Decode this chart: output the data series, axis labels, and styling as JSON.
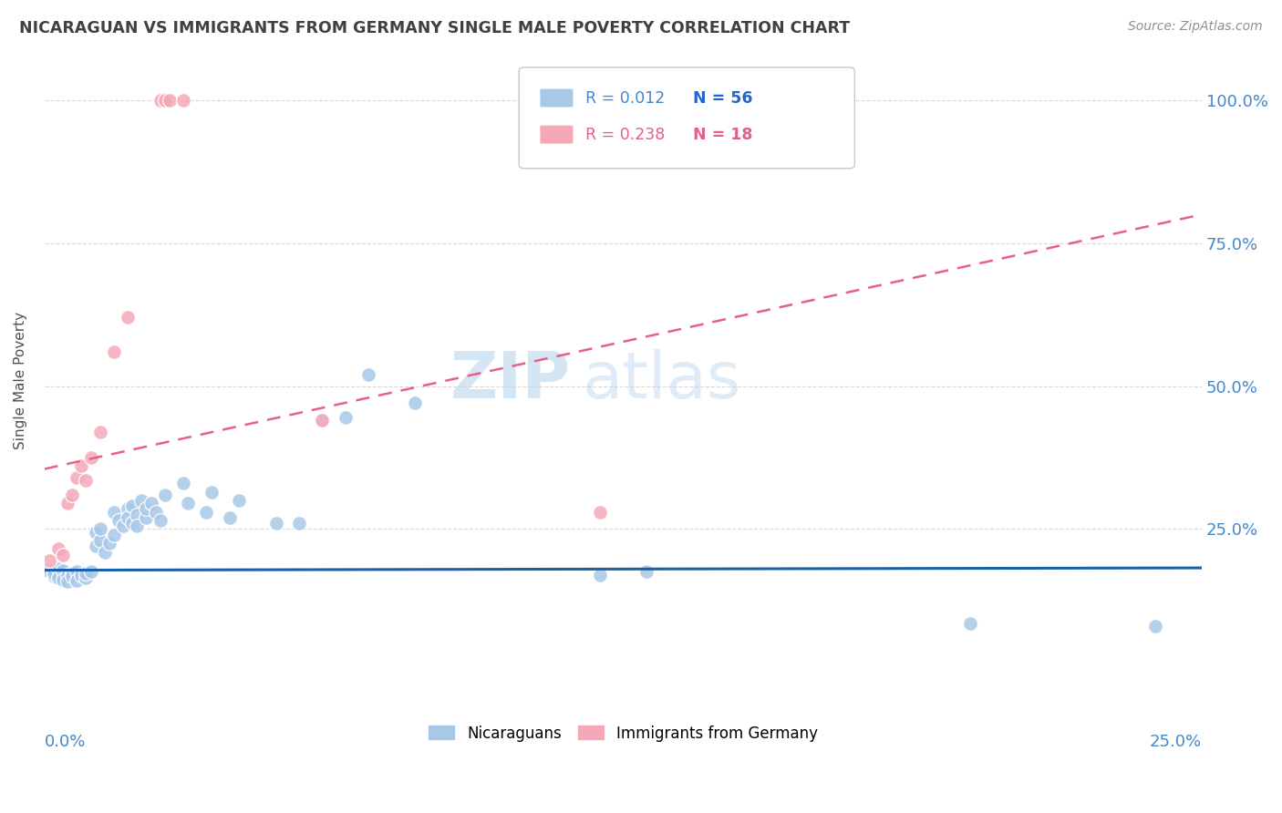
{
  "title": "NICARAGUAN VS IMMIGRANTS FROM GERMANY SINGLE MALE POVERTY CORRELATION CHART",
  "source": "Source: ZipAtlas.com",
  "ylabel": "Single Male Poverty",
  "ytick_labels": [
    "100.0%",
    "75.0%",
    "50.0%",
    "25.0%"
  ],
  "ytick_values": [
    1.0,
    0.75,
    0.5,
    0.25
  ],
  "xlim": [
    0.0,
    0.25
  ],
  "ylim": [
    -0.06,
    1.08
  ],
  "blue_color": "#a8c8e8",
  "pink_color": "#f4a8b8",
  "blue_line_color": "#1a5fa8",
  "pink_line_color": "#e8608a",
  "blue_scatter": [
    [
      0.001,
      0.175
    ],
    [
      0.002,
      0.168
    ],
    [
      0.002,
      0.172
    ],
    [
      0.003,
      0.18
    ],
    [
      0.003,
      0.165
    ],
    [
      0.004,
      0.178
    ],
    [
      0.004,
      0.162
    ],
    [
      0.005,
      0.17
    ],
    [
      0.005,
      0.158
    ],
    [
      0.006,
      0.172
    ],
    [
      0.006,
      0.168
    ],
    [
      0.007,
      0.175
    ],
    [
      0.007,
      0.16
    ],
    [
      0.008,
      0.17
    ],
    [
      0.009,
      0.165
    ],
    [
      0.009,
      0.172
    ],
    [
      0.01,
      0.175
    ],
    [
      0.011,
      0.22
    ],
    [
      0.011,
      0.245
    ],
    [
      0.012,
      0.23
    ],
    [
      0.012,
      0.25
    ],
    [
      0.013,
      0.21
    ],
    [
      0.014,
      0.225
    ],
    [
      0.015,
      0.28
    ],
    [
      0.015,
      0.24
    ],
    [
      0.016,
      0.265
    ],
    [
      0.017,
      0.255
    ],
    [
      0.018,
      0.285
    ],
    [
      0.018,
      0.27
    ],
    [
      0.019,
      0.29
    ],
    [
      0.019,
      0.26
    ],
    [
      0.02,
      0.275
    ],
    [
      0.02,
      0.255
    ],
    [
      0.021,
      0.3
    ],
    [
      0.022,
      0.27
    ],
    [
      0.022,
      0.285
    ],
    [
      0.023,
      0.295
    ],
    [
      0.024,
      0.28
    ],
    [
      0.025,
      0.265
    ],
    [
      0.026,
      0.31
    ],
    [
      0.03,
      0.33
    ],
    [
      0.031,
      0.295
    ],
    [
      0.035,
      0.28
    ],
    [
      0.036,
      0.315
    ],
    [
      0.04,
      0.27
    ],
    [
      0.042,
      0.3
    ],
    [
      0.05,
      0.26
    ],
    [
      0.055,
      0.26
    ],
    [
      0.06,
      0.44
    ],
    [
      0.065,
      0.445
    ],
    [
      0.07,
      0.52
    ],
    [
      0.08,
      0.47
    ],
    [
      0.12,
      0.17
    ],
    [
      0.13,
      0.175
    ],
    [
      0.2,
      0.085
    ],
    [
      0.24,
      0.08
    ]
  ],
  "pink_scatter": [
    [
      0.001,
      0.195
    ],
    [
      0.003,
      0.215
    ],
    [
      0.004,
      0.205
    ],
    [
      0.005,
      0.295
    ],
    [
      0.006,
      0.31
    ],
    [
      0.007,
      0.34
    ],
    [
      0.008,
      0.36
    ],
    [
      0.009,
      0.335
    ],
    [
      0.01,
      0.375
    ],
    [
      0.012,
      0.42
    ],
    [
      0.015,
      0.56
    ],
    [
      0.018,
      0.62
    ],
    [
      0.025,
      1.0
    ],
    [
      0.026,
      1.0
    ],
    [
      0.027,
      1.0
    ],
    [
      0.03,
      1.0
    ],
    [
      0.06,
      0.44
    ],
    [
      0.12,
      0.28
    ]
  ],
  "blue_trend_x": [
    0.0,
    0.25
  ],
  "blue_trend_y": [
    0.178,
    0.182
  ],
  "pink_trend_x": [
    0.0,
    0.25
  ],
  "pink_trend_y": [
    0.355,
    0.8
  ],
  "watermark_zip": "ZIP",
  "watermark_atlas": "atlas",
  "background_color": "#ffffff",
  "grid_color": "#d8d8d8",
  "title_color": "#404040",
  "source_color": "#909090",
  "ylabel_color": "#505050",
  "ytick_color": "#4488cc",
  "xtick_color": "#4488cc",
  "legend_blue_r": "R = 0.012",
  "legend_blue_n": "N = 56",
  "legend_pink_r": "R = 0.238",
  "legend_pink_n": "N = 18",
  "legend_r_color_blue": "#4488cc",
  "legend_n_color_blue": "#2266cc",
  "legend_r_color_pink": "#e06090",
  "legend_n_color_pink": "#e06090",
  "bottom_legend_blue": "Nicaraguans",
  "bottom_legend_pink": "Immigrants from Germany"
}
